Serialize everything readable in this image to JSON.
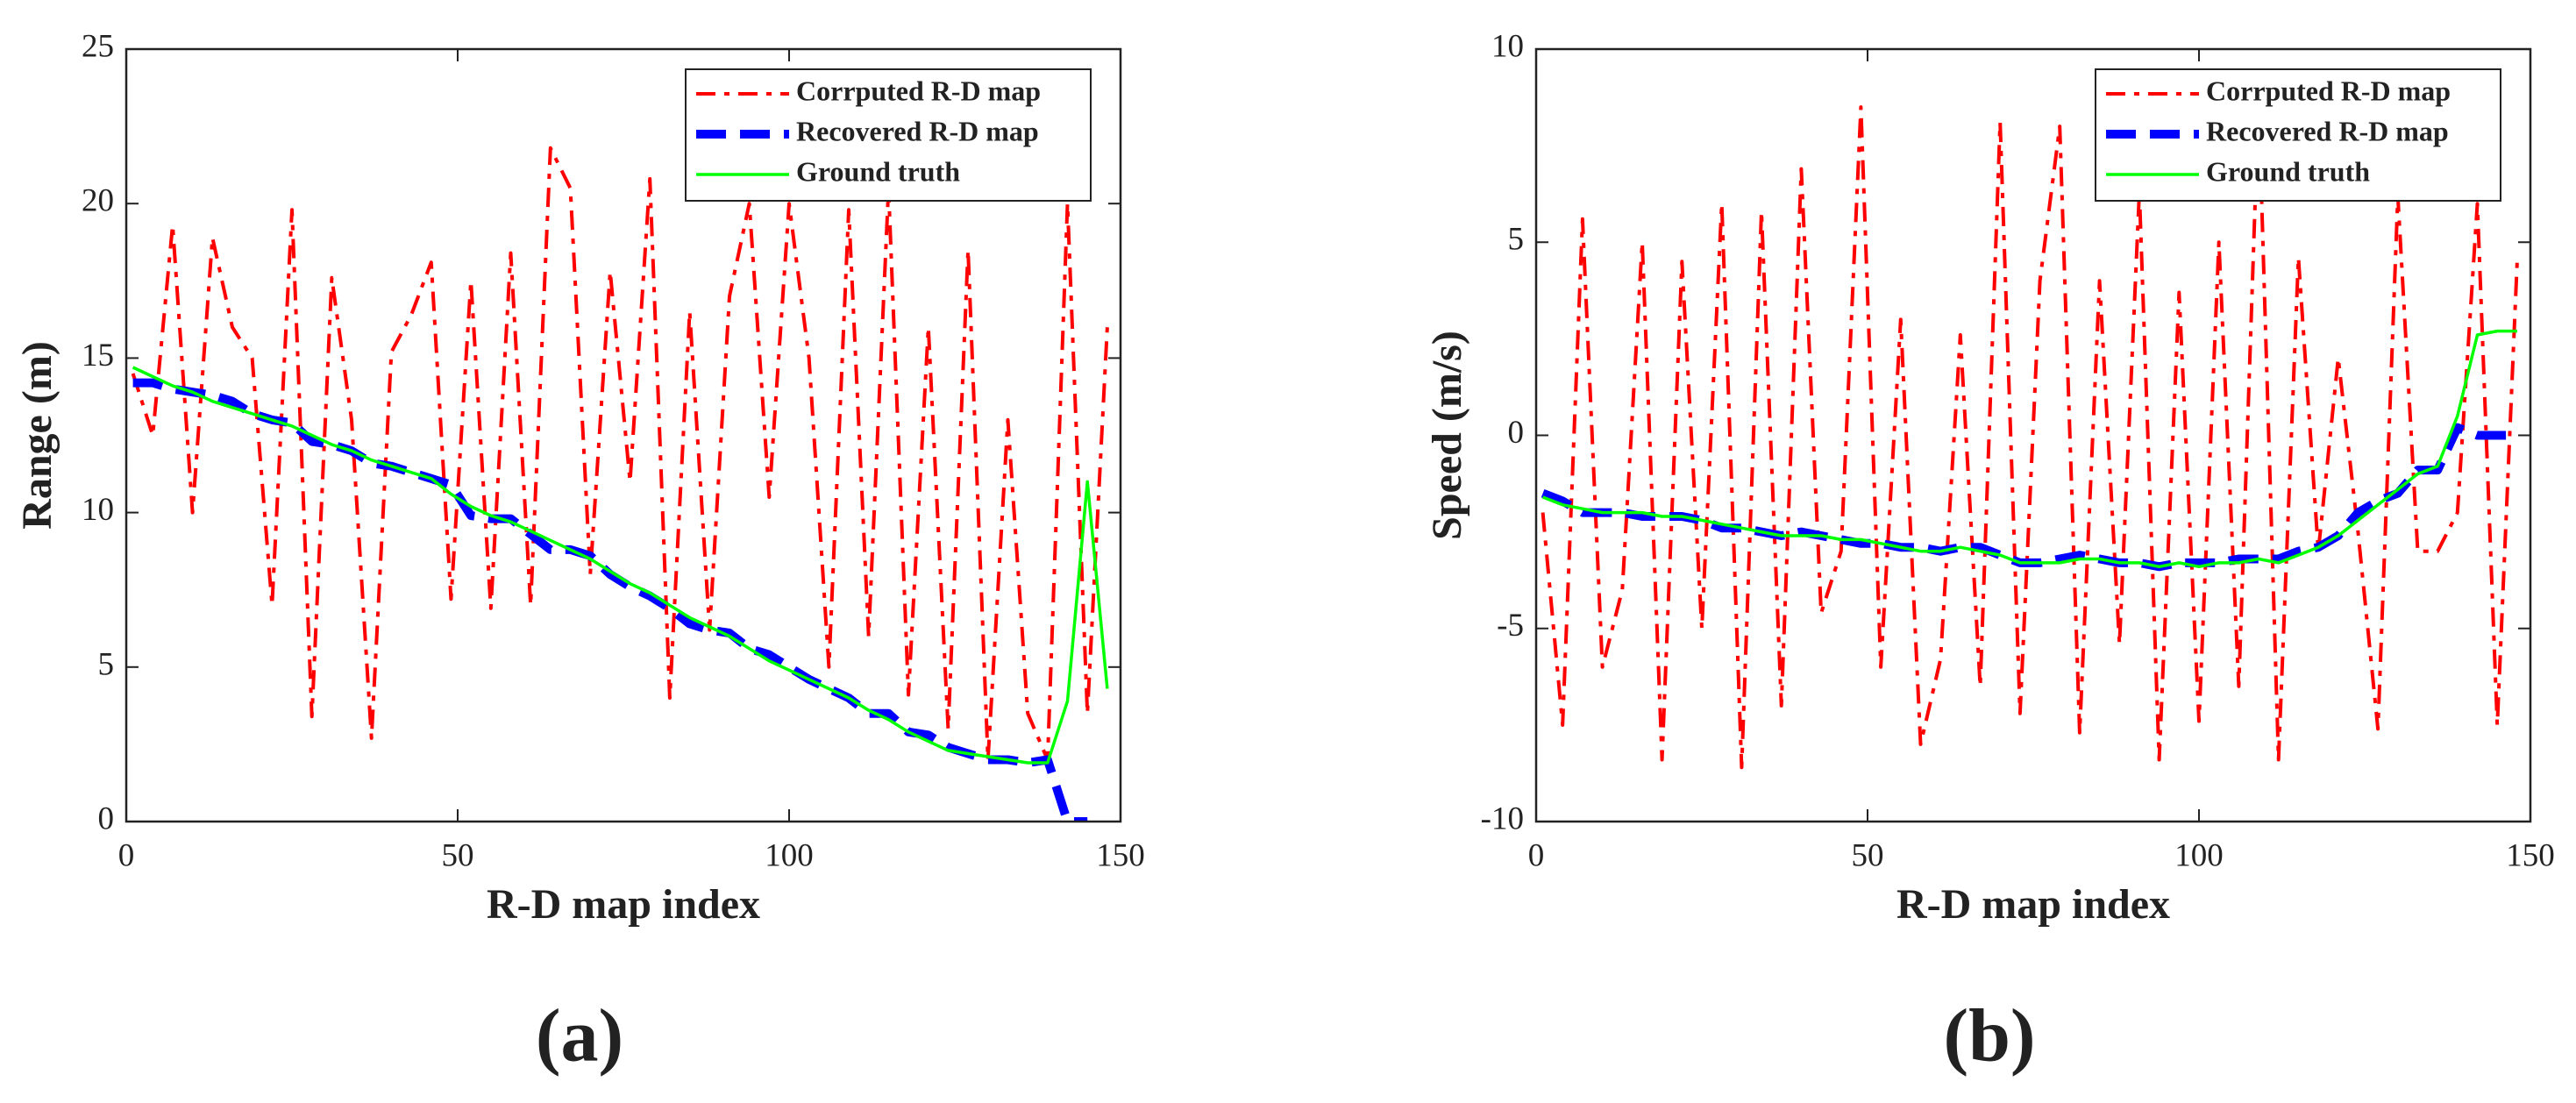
{
  "chart_data": [
    {
      "type": "line",
      "caption": "(a)",
      "xlabel": "R-D map index",
      "ylabel": "Range (m)",
      "xlim": [
        0,
        150
      ],
      "xticks": [
        0,
        50,
        100,
        150
      ],
      "ylim": [
        0,
        25
      ],
      "yticks": [
        0,
        5,
        10,
        15,
        20,
        25
      ],
      "legend": "upper right",
      "x": [
        1,
        4,
        7,
        10,
        13,
        16,
        19,
        22,
        25,
        28,
        31,
        34,
        37,
        40,
        43,
        46,
        49,
        52,
        55,
        58,
        61,
        64,
        67,
        70,
        73,
        76,
        79,
        82,
        85,
        88,
        91,
        94,
        97,
        100,
        103,
        106,
        109,
        112,
        115,
        118,
        121,
        124,
        127,
        130,
        133,
        136,
        139,
        142,
        145,
        148
      ],
      "series": [
        {
          "name": "Corrputed R-D map",
          "color": "#ff0000",
          "dash": "dashdot",
          "values": [
            14.5,
            12.5,
            19.3,
            10,
            18.9,
            16,
            15,
            7,
            19.8,
            3.4,
            17.6,
            13,
            2.7,
            15.2,
            16.4,
            18.1,
            7.2,
            17.5,
            6.9,
            18.4,
            7,
            21.8,
            20.5,
            8,
            17.8,
            11,
            20.8,
            4,
            16.5,
            6.2,
            17,
            20,
            10.5,
            20,
            15,
            5,
            19.8,
            6,
            20.5,
            4.1,
            16,
            3,
            18.5,
            2,
            13,
            3.5,
            2,
            20,
            3.5,
            16
          ]
        },
        {
          "name": "Recovered R-D map",
          "color": "#0000ff",
          "dash": "dashed",
          "values": [
            14.2,
            14.2,
            14.0,
            13.9,
            13.8,
            13.6,
            13.2,
            13.0,
            12.9,
            12.3,
            12.2,
            12.0,
            11.6,
            11.5,
            11.3,
            11.1,
            10.9,
            9.9,
            9.8,
            9.8,
            9.3,
            8.8,
            8.8,
            8.6,
            8.0,
            7.6,
            7.3,
            6.9,
            6.4,
            6.2,
            6.1,
            5.6,
            5.4,
            5.0,
            4.6,
            4.3,
            4.0,
            3.5,
            3.5,
            2.9,
            2.8,
            2.4,
            2.2,
            2.0,
            2.0,
            1.9,
            2.0,
            0,
            0,
            null
          ]
        },
        {
          "name": "Ground truth",
          "color": "#00ff00",
          "dash": "solid",
          "values": [
            14.7,
            14.4,
            14.1,
            13.9,
            13.6,
            13.4,
            13.2,
            13.0,
            12.8,
            12.5,
            12.2,
            12.0,
            11.7,
            11.5,
            11.3,
            11.1,
            10.6,
            10.2,
            9.9,
            9.7,
            9.4,
            9.1,
            8.8,
            8.5,
            8.1,
            7.7,
            7.4,
            7.0,
            6.6,
            6.3,
            6.0,
            5.6,
            5.2,
            4.9,
            4.6,
            4.3,
            4.0,
            3.6,
            3.3,
            2.9,
            2.6,
            2.3,
            2.2,
            2.1,
            2.0,
            1.9,
            1.9,
            3.9,
            11.0,
            4.3
          ]
        }
      ]
    },
    {
      "type": "line",
      "caption": "(b)",
      "xlabel": "R-D map index",
      "ylabel": "Speed (m/s)",
      "xlim": [
        0,
        150
      ],
      "xticks": [
        0,
        50,
        100,
        150
      ],
      "ylim": [
        -10,
        10
      ],
      "yticks": [
        -10,
        -5,
        0,
        5,
        10
      ],
      "legend": "upper right",
      "x": [
        1,
        4,
        7,
        10,
        13,
        16,
        19,
        22,
        25,
        28,
        31,
        34,
        37,
        40,
        43,
        46,
        49,
        52,
        55,
        58,
        61,
        64,
        67,
        70,
        73,
        76,
        79,
        82,
        85,
        88,
        91,
        94,
        97,
        100,
        103,
        106,
        109,
        112,
        115,
        118,
        121,
        124,
        127,
        130,
        133,
        136,
        139,
        142,
        145,
        148
      ],
      "series": [
        {
          "name": "Corrputed R-D map",
          "color": "#ff0000",
          "dash": "dashdot",
          "values": [
            -2,
            -7.5,
            5.6,
            -6,
            -4,
            5,
            -8.4,
            4.5,
            -5,
            6,
            -8.6,
            5.8,
            -7,
            6.9,
            -4.6,
            -3,
            8.5,
            -6,
            3,
            -8,
            -5.8,
            2.6,
            -6.5,
            8.1,
            -7.2,
            4,
            8,
            -7.7,
            4,
            -5.4,
            6.3,
            -8.4,
            3.7,
            -7.4,
            5,
            -6.5,
            8.7,
            -8.4,
            4.6,
            -3,
            2,
            -2.5,
            -7.6,
            6.2,
            -3,
            -3,
            -2,
            6,
            -7.5,
            4.5
          ]
        },
        {
          "name": "Recovered R-D map",
          "color": "#0000ff",
          "dash": "dashed",
          "values": [
            -1.5,
            -1.7,
            -2.0,
            -2.0,
            -2.0,
            -2.1,
            -2.1,
            -2.1,
            -2.2,
            -2.4,
            -2.4,
            -2.5,
            -2.6,
            -2.5,
            -2.6,
            -2.7,
            -2.8,
            -2.8,
            -2.9,
            -2.9,
            -3.0,
            -2.9,
            -2.9,
            -3.1,
            -3.3,
            -3.3,
            -3.2,
            -3.1,
            -3.2,
            -3.3,
            -3.3,
            -3.4,
            -3.3,
            -3.3,
            -3.3,
            -3.2,
            -3.2,
            -3.2,
            -3.0,
            -2.9,
            -2.6,
            -2.0,
            -1.7,
            -1.5,
            -0.9,
            -0.9,
            0.2,
            0,
            0,
            0
          ]
        },
        {
          "name": "Ground truth",
          "color": "#00ff00",
          "dash": "solid",
          "values": [
            -1.6,
            -1.8,
            -1.9,
            -2.0,
            -2.0,
            -2.0,
            -2.1,
            -2.1,
            -2.2,
            -2.3,
            -2.4,
            -2.5,
            -2.6,
            -2.6,
            -2.6,
            -2.7,
            -2.7,
            -2.8,
            -2.9,
            -3.0,
            -3.0,
            -2.9,
            -3.0,
            -3.1,
            -3.3,
            -3.3,
            -3.3,
            -3.2,
            -3.2,
            -3.3,
            -3.3,
            -3.4,
            -3.3,
            -3.4,
            -3.3,
            -3.3,
            -3.2,
            -3.3,
            -3.1,
            -2.9,
            -2.6,
            -2.2,
            -1.8,
            -1.4,
            -1.0,
            -0.8,
            0.5,
            2.6,
            2.7,
            2.7
          ]
        }
      ]
    }
  ]
}
